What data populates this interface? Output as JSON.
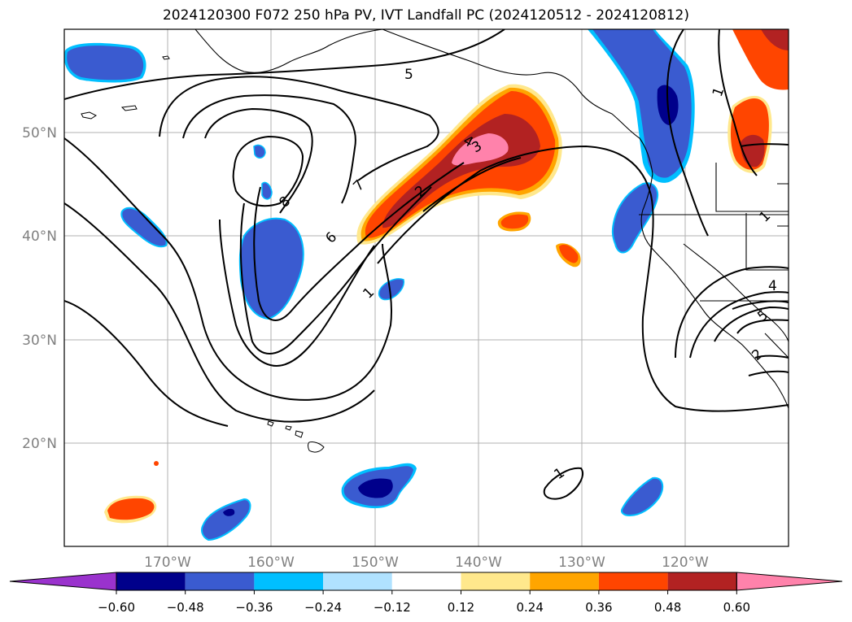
{
  "title": "2024120300 F072 250 hPa PV, IVT Landfall PC (2024120512 - 2024120812)",
  "map": {
    "lon_labels": [
      "170°W",
      "160°W",
      "150°W",
      "140°W",
      "130°W",
      "120°W"
    ],
    "lat_labels": [
      "50°N",
      "40°N",
      "30°N",
      "20°N"
    ],
    "contour_labels": [
      "5",
      "7",
      "8",
      "6",
      "1",
      "4",
      "3",
      "2",
      "1",
      "1",
      "4",
      "5",
      "2",
      "1"
    ],
    "fill_colors": {
      "neg_extend": "#9a32cd",
      "dark_navy": "#00008b",
      "royal_blue": "#3a5bd0",
      "sky_blue": "#00bfff",
      "pale_blue": "#b0e2ff",
      "yellow": "#ffe88c",
      "orange": "#ffa500",
      "red_orange": "#ff4500",
      "dark_red": "#b22222",
      "pink": "#ff82ab"
    }
  },
  "colorbar": {
    "colors": [
      "#9a32cd",
      "#00008b",
      "#3a5bd0",
      "#00bfff",
      "#b0e2ff",
      "#ffffff",
      "#ffe88c",
      "#ffa500",
      "#ff4500",
      "#b22222",
      "#ff82ab"
    ],
    "tick_labels": [
      "−0.60",
      "−0.48",
      "−0.36",
      "−0.24",
      "−0.12",
      "0.12",
      "0.24",
      "0.36",
      "0.48",
      "0.60"
    ]
  }
}
